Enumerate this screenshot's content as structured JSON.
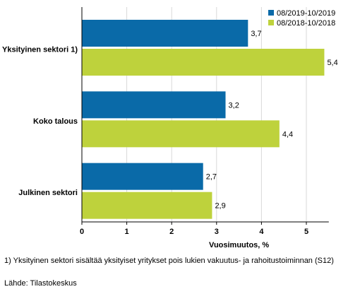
{
  "chart_data": {
    "type": "bar",
    "orientation": "horizontal",
    "categories": [
      "Yksityinen sektori 1)",
      "Koko talous",
      "Julkinen sektori"
    ],
    "series": [
      {
        "name": "08/2019-10/2019",
        "values": [
          3.7,
          3.2,
          2.7
        ],
        "color": "#0a6aa8"
      },
      {
        "name": "08/2018-10/2018",
        "values": [
          5.4,
          4.4,
          2.9
        ],
        "color": "#bed23c"
      }
    ],
    "value_labels": [
      [
        "3,7",
        "3,2",
        "2,7"
      ],
      [
        "5,4",
        "4,4",
        "2,9"
      ]
    ],
    "xlabel": "Vuosimuutos, %",
    "xlim": [
      0,
      5.5
    ],
    "xticks": [
      0,
      1,
      2,
      3,
      4,
      5
    ],
    "xtick_labels": [
      "0",
      "1",
      "2",
      "3",
      "4",
      "5"
    ],
    "grid": true,
    "legend_position": "top-right"
  },
  "footnote": "1) Yksityinen sektori sisältää yksityiset yritykset pois lukien vakuutus- ja rahoitustoiminnan (S12)",
  "source": "Lähde: Tilastokeskus"
}
